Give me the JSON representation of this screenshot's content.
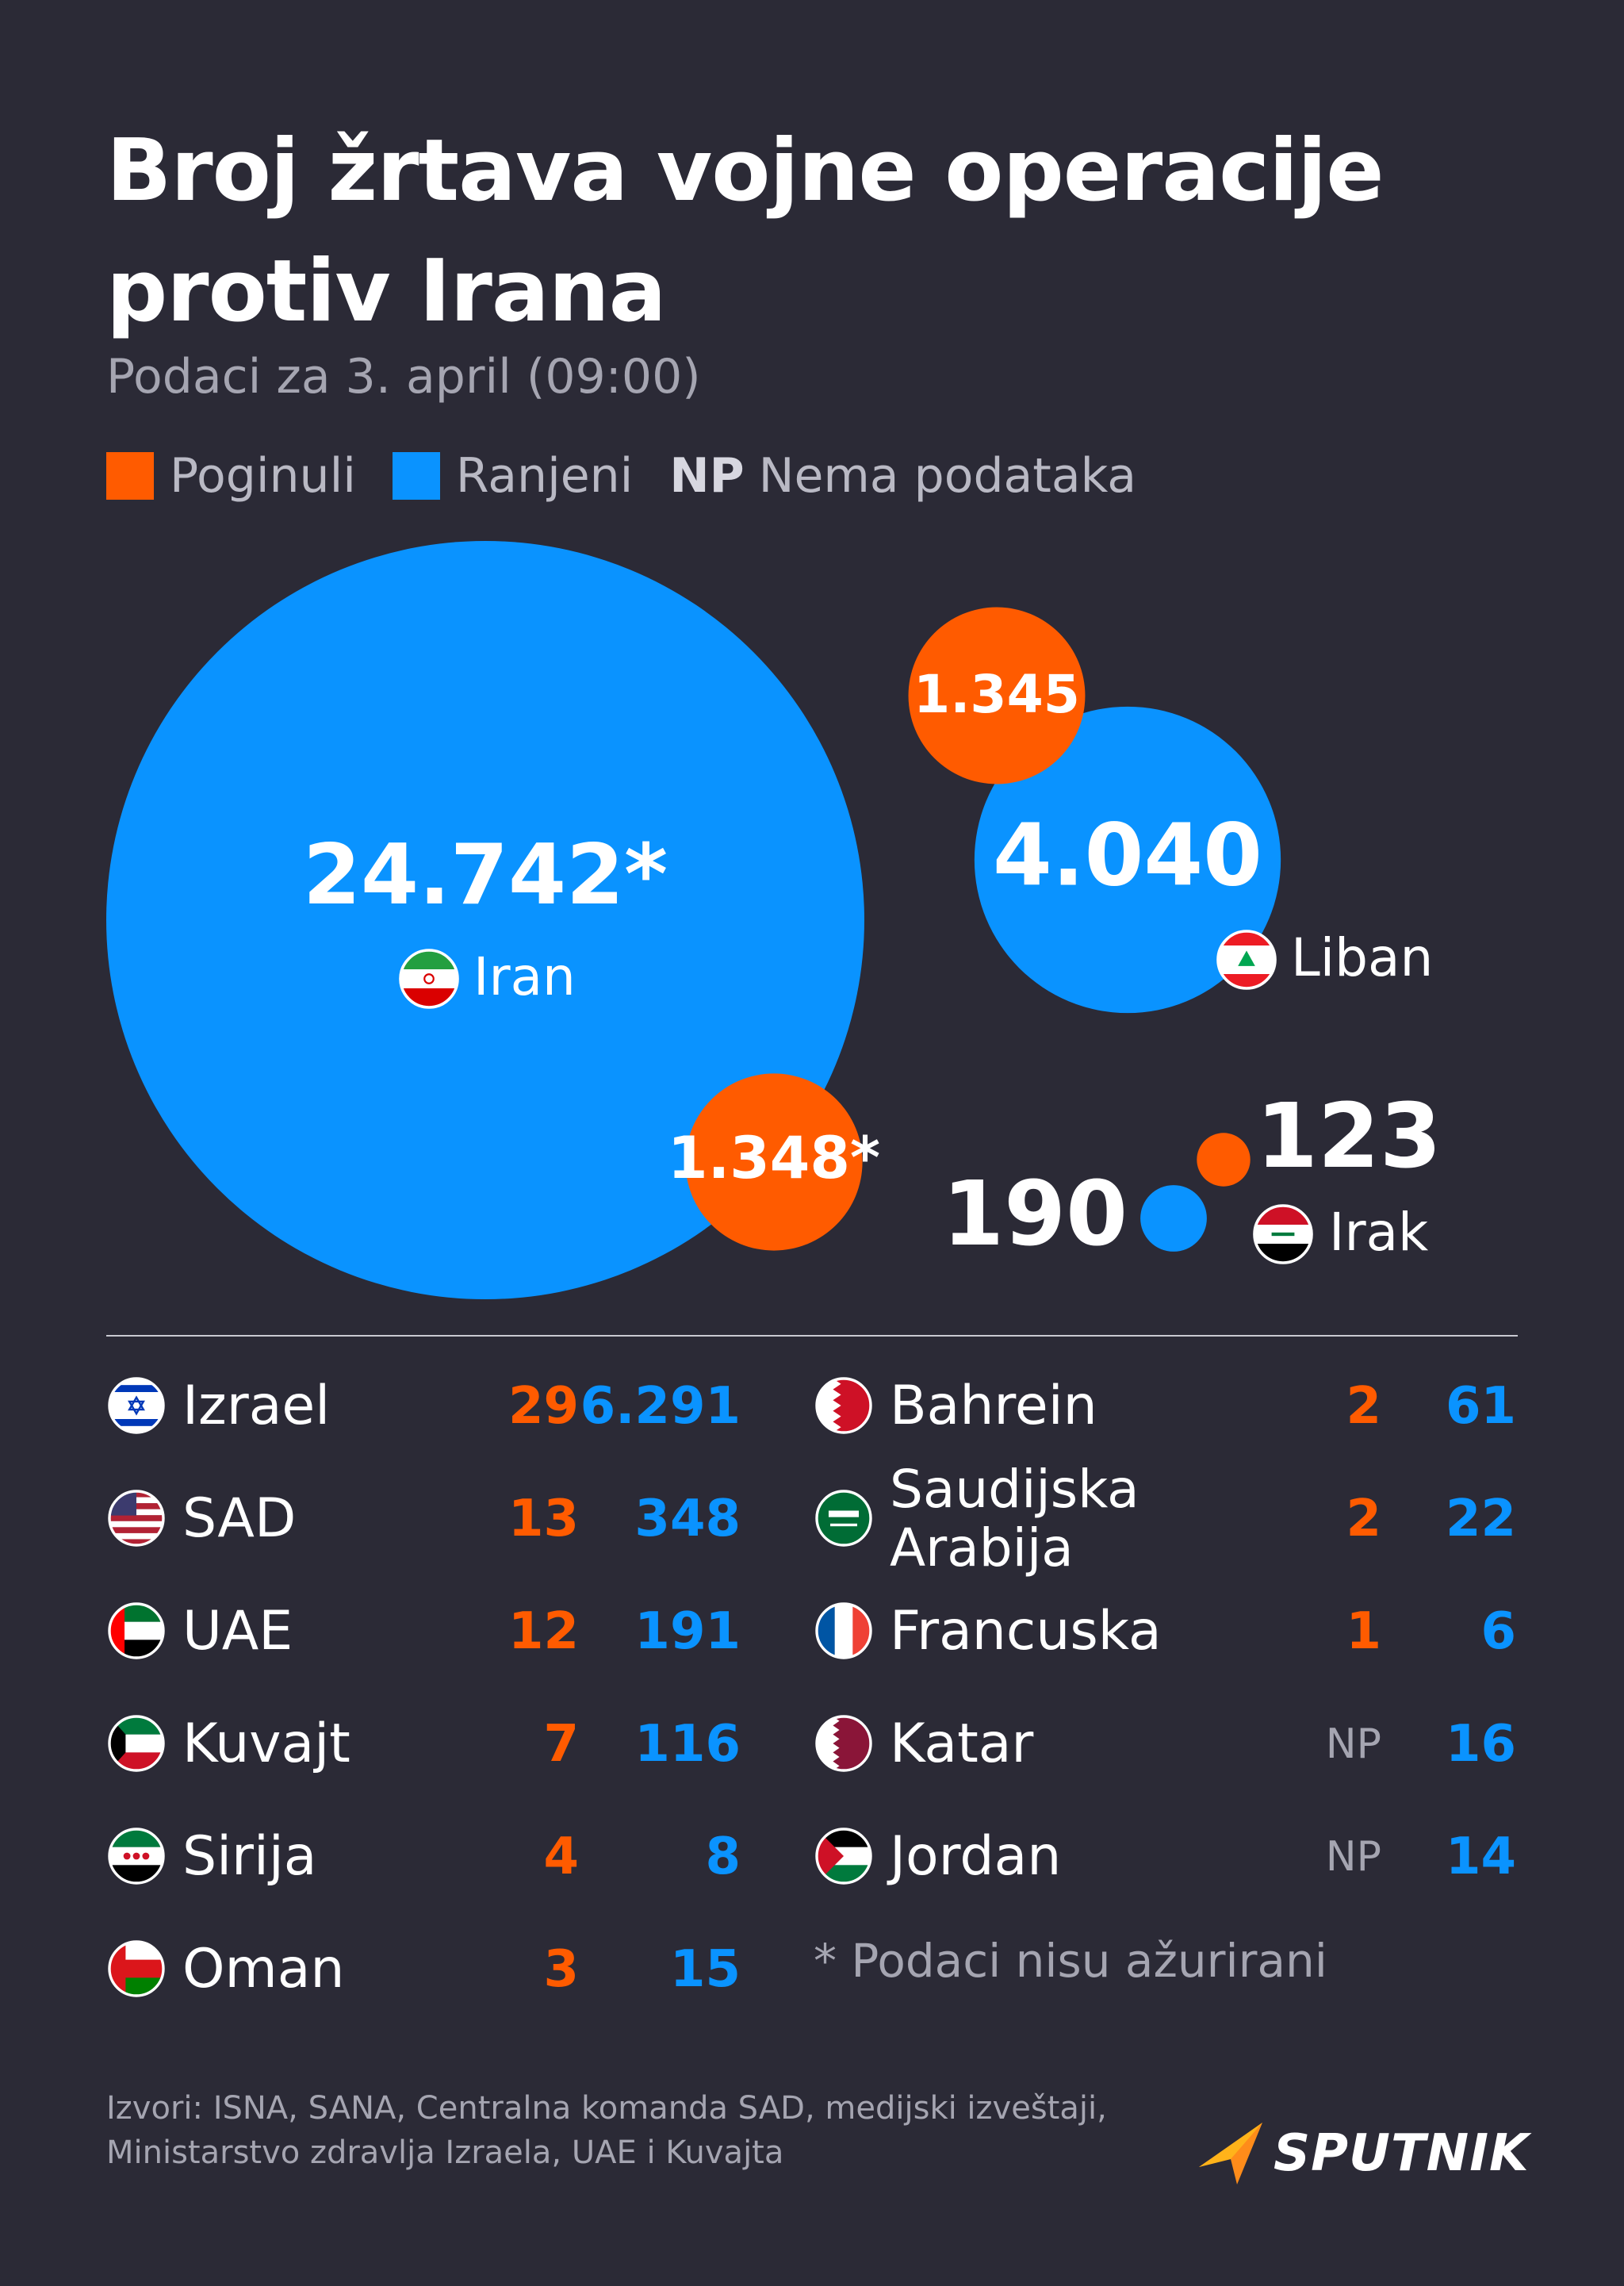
{
  "title": "Broj žrtava vojne operacije protiv Irana",
  "subtitle": "Podaci za 3. april (09:00)",
  "legend": {
    "killed": "Poginuli",
    "wounded": "Ranjeni",
    "np_abbr": "NP",
    "np_text": "Nema podataka"
  },
  "colors": {
    "background": "#2b2a36",
    "killed": "#ff5b00",
    "wounded": "#0a93ff",
    "muted": "#a5a5b1"
  },
  "chart_data": {
    "type": "bubble",
    "title": "Broj žrtava vojne operacije protiv Irana",
    "series": [
      {
        "name": "Poginuli"
      },
      {
        "name": "Ranjeni"
      }
    ],
    "bubbles": [
      {
        "country": "Iran",
        "flag": "iran-flag",
        "killed_label": "1.348*",
        "wounded_label": "24.742*",
        "killed": 1348,
        "wounded": 24742
      },
      {
        "country": "Liban",
        "flag": "lebanon-flag",
        "killed_label": "1.345",
        "wounded_label": "4.040",
        "killed": 1345,
        "wounded": 4040
      },
      {
        "country": "Irak",
        "flag": "iraq-flag",
        "killed_label": "123",
        "wounded_label": "190",
        "killed": 123,
        "wounded": 190
      }
    ],
    "table": [
      {
        "country": "Izrael",
        "flag": "israel-flag",
        "killed": "29",
        "wounded": "6.291"
      },
      {
        "country": "SAD",
        "flag": "usa-flag",
        "killed": "13",
        "wounded": "348"
      },
      {
        "country": "UAE",
        "flag": "uae-flag",
        "killed": "12",
        "wounded": "191"
      },
      {
        "country": "Kuvajt",
        "flag": "kuwait-flag",
        "killed": "7",
        "wounded": "116"
      },
      {
        "country": "Sirija",
        "flag": "syria-flag",
        "killed": "4",
        "wounded": "8"
      },
      {
        "country": "Oman",
        "flag": "oman-flag",
        "killed": "3",
        "wounded": "15"
      },
      {
        "country": "Bahrein",
        "flag": "bahrain-flag",
        "killed": "2",
        "wounded": "61"
      },
      {
        "country": "Saudijska Arabija",
        "flag": "saudi-arabia-flag",
        "killed": "2",
        "wounded": "22"
      },
      {
        "country": "Francuska",
        "flag": "france-flag",
        "killed": "1",
        "wounded": "6"
      },
      {
        "country": "Katar",
        "flag": "qatar-flag",
        "killed": "NP",
        "wounded": "16"
      },
      {
        "country": "Jordan",
        "flag": "jordan-flag",
        "killed": "NP",
        "wounded": "14"
      }
    ]
  },
  "footnote": "* Podaci nisu ažurirani",
  "sources": "Izvori: ISNA, SANA, Centralna komanda SAD, medijski izveštaji, Ministarstvo zdravlja Izraela, UAE i Kuvajta",
  "brand": {
    "name": "SPUTNIK",
    "logo": "sputnik-logo-icon"
  }
}
